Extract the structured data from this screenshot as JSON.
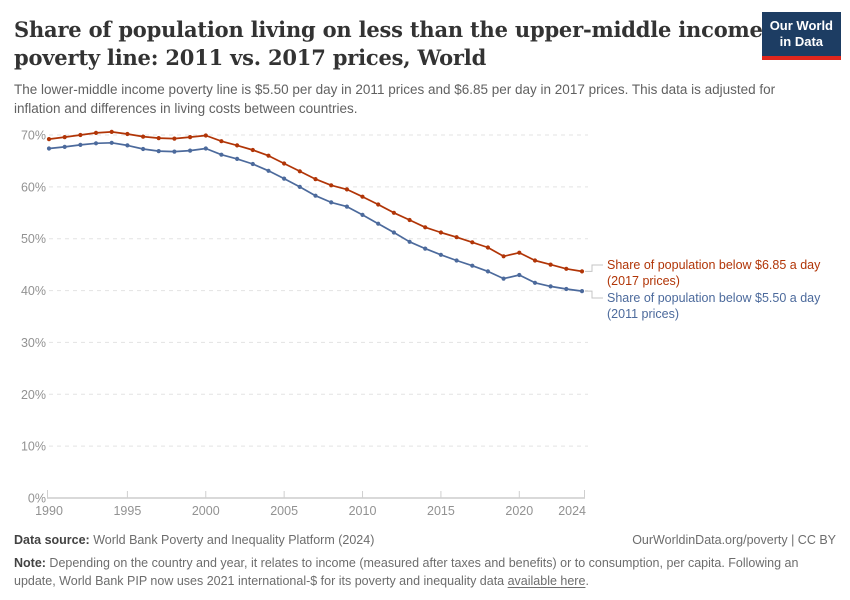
{
  "header": {
    "title_lines": [
      "Share of population living on less than the upper-middle income",
      "poverty line: 2011 vs. 2017 prices, World"
    ],
    "subtitle": "The lower-middle income poverty line is $5.50 per day in 2011 prices and $6.85 per day in 2017 prices. This data is adjusted for inflation and differences in living costs between countries.",
    "logo": {
      "line1": "Our World",
      "line2": "in Data",
      "bg_color": "#1d3d63",
      "accent_color": "#e0261c"
    }
  },
  "chart_data": {
    "type": "line",
    "title": "Share of population living on less than the upper-middle income poverty line: 2011 vs. 2017 prices, World",
    "xlabel": "",
    "ylabel": "",
    "x": [
      1990,
      1991,
      1992,
      1993,
      1994,
      1995,
      1996,
      1997,
      1998,
      1999,
      2000,
      2001,
      2002,
      2003,
      2004,
      2005,
      2006,
      2007,
      2008,
      2009,
      2010,
      2011,
      2012,
      2013,
      2014,
      2015,
      2016,
      2017,
      2018,
      2019,
      2020,
      2021,
      2022,
      2023,
      2024
    ],
    "series": [
      {
        "name": "Share of population below $6.85 a day (2017 prices)",
        "label_line1": "Share of population below $6.85 a day",
        "label_line2": "(2017 prices)",
        "color": "#b13507",
        "values": [
          69.2,
          69.6,
          70.0,
          70.4,
          70.6,
          70.2,
          69.7,
          69.4,
          69.3,
          69.6,
          69.9,
          68.8,
          68.0,
          67.1,
          66.0,
          64.5,
          63.0,
          61.5,
          60.3,
          59.5,
          58.1,
          56.6,
          55.0,
          53.6,
          52.2,
          51.2,
          50.3,
          49.3,
          48.3,
          46.6,
          47.3,
          45.8,
          45.0,
          44.2,
          43.7
        ]
      },
      {
        "name": "Share of population below $5.50 a day (2011 prices)",
        "label_line1": "Share of population below $5.50 a day",
        "label_line2": "(2011 prices)",
        "color": "#4c6a9c",
        "values": [
          67.4,
          67.7,
          68.1,
          68.4,
          68.5,
          68.0,
          67.3,
          66.9,
          66.8,
          67.0,
          67.4,
          66.2,
          65.4,
          64.4,
          63.1,
          61.6,
          60.0,
          58.3,
          57.0,
          56.2,
          54.6,
          52.9,
          51.2,
          49.4,
          48.1,
          46.9,
          45.8,
          44.8,
          43.7,
          42.3,
          43.0,
          41.5,
          40.8,
          40.3,
          39.9
        ]
      }
    ],
    "ylim": [
      0,
      70
    ],
    "ytick_values": [
      0,
      10,
      20,
      30,
      40,
      50,
      60,
      70
    ],
    "ytick_labels": [
      "0%",
      "10%",
      "20%",
      "30%",
      "40%",
      "50%",
      "60%",
      "70%"
    ],
    "xtick_values": [
      1990,
      1995,
      2000,
      2005,
      2010,
      2015,
      2020,
      2024
    ],
    "grid": "horizontal-dashed",
    "legend_position": "right-of-line-end",
    "grid_color": "#e3e3e3",
    "axis_color": "#b3b3b3",
    "tick_color": "#cfcfcf",
    "tick_label_color": "#929292"
  },
  "footer": {
    "data_source_label": "Data source:",
    "data_source_text": " World Bank Poverty and Inequality Platform (2024)",
    "credit": "OurWorldinData.org/poverty | CC BY",
    "note_label": "Note:",
    "note_text": " Depending on the country and year, it relates to income (measured after taxes and benefits) or to consumption, per capita. Following an update, World Bank PIP now uses 2021 international-$ for its poverty and inequality data ",
    "note_link": "available here",
    "note_suffix": "."
  }
}
